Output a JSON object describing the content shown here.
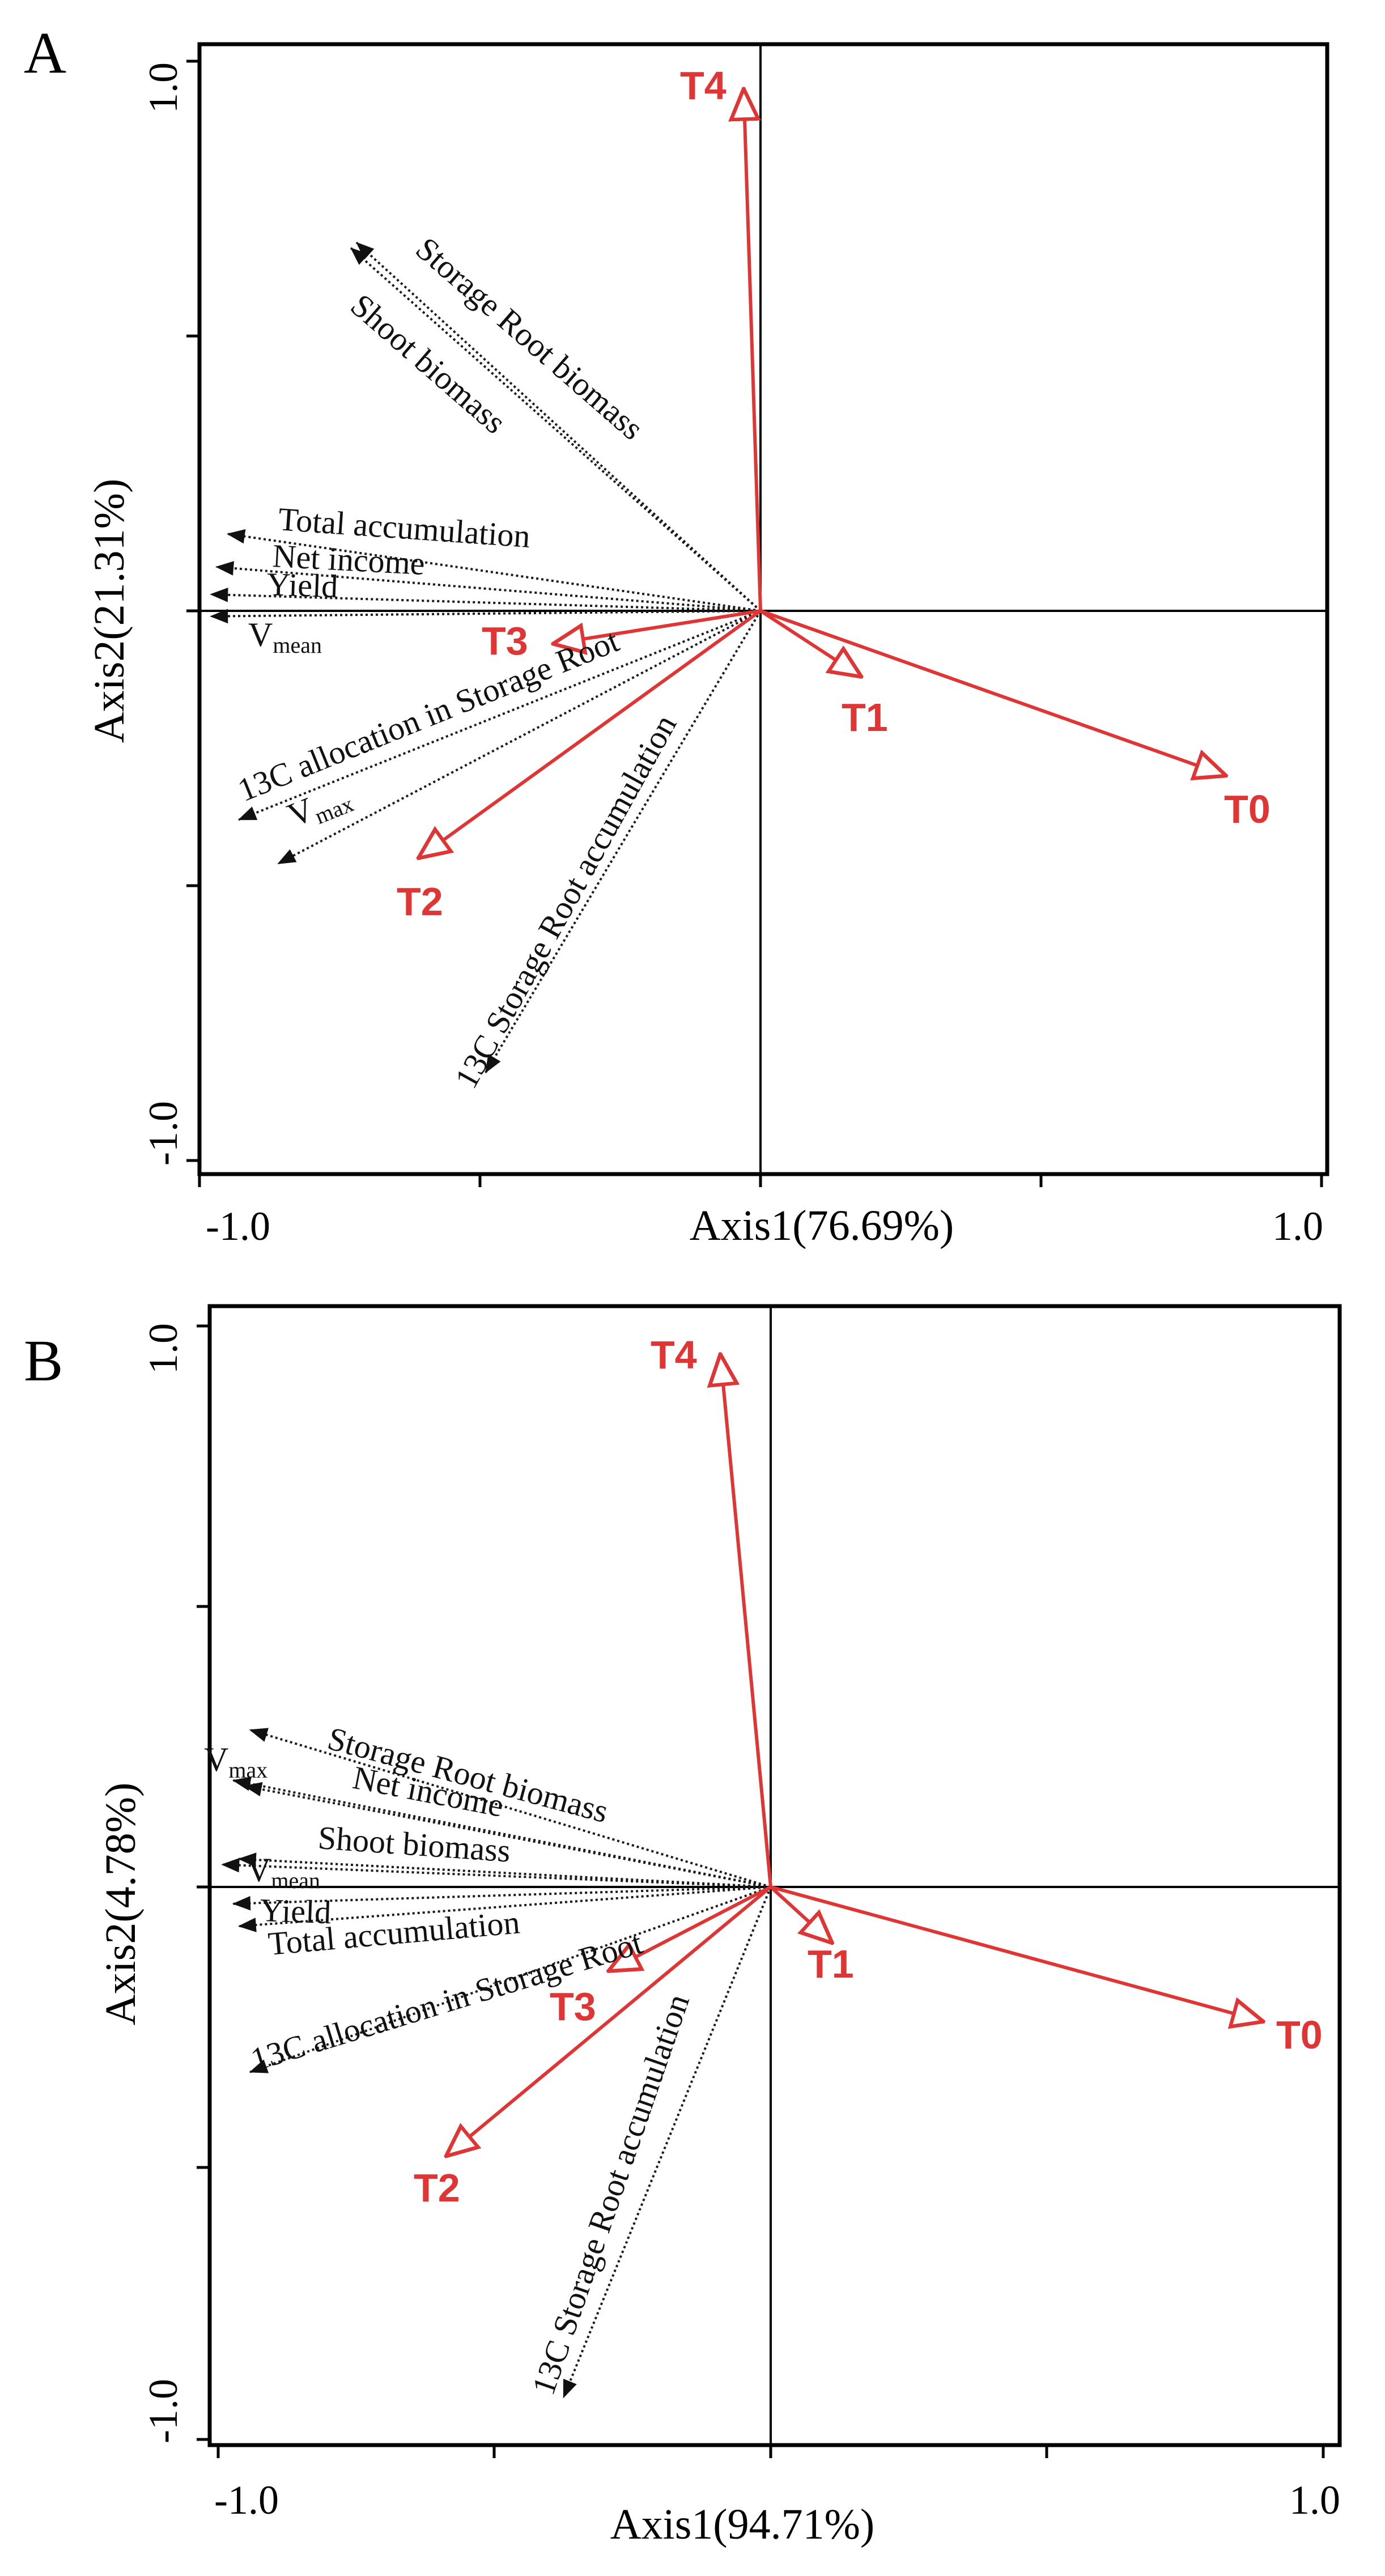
{
  "chart_data": [
    {
      "type": "biplot",
      "panel": "A",
      "xlabel": "Axis1(76.69%)",
      "ylabel": "Axis2(21.31%)",
      "xlim": [
        -1.0,
        1.0
      ],
      "ylim": [
        -1.0,
        1.0
      ],
      "x_ticks": [
        "-1.0",
        "1.0"
      ],
      "y_ticks": [
        "1.0",
        "-1.0"
      ],
      "treatments": [
        {
          "name": "T4",
          "x": -0.03,
          "y": 0.95
        },
        {
          "name": "T3",
          "x": -0.37,
          "y": -0.06
        },
        {
          "name": "T1",
          "x": 0.18,
          "y": -0.12
        },
        {
          "name": "T0",
          "x": 0.83,
          "y": -0.3
        },
        {
          "name": "T2",
          "x": -0.61,
          "y": -0.45
        }
      ],
      "variables": [
        {
          "name": "Storage Root biomass",
          "x": -0.72,
          "y": 0.67
        },
        {
          "name": "Shoot biomass",
          "x": -0.73,
          "y": 0.66
        },
        {
          "name": "Total accumulation",
          "x": -0.95,
          "y": 0.14
        },
        {
          "name": "Net income",
          "x": -0.97,
          "y": 0.08
        },
        {
          "name": "Yield",
          "x": -0.98,
          "y": 0.03
        },
        {
          "name": "V_mean",
          "x": -0.98,
          "y": -0.01
        },
        {
          "name": "13C allocation in Storage Root",
          "x": -0.93,
          "y": -0.38
        },
        {
          "name": "V_max",
          "x": -0.86,
          "y": -0.46
        },
        {
          "name": "13C Storage Root accumulation",
          "x": -0.49,
          "y": -0.84
        }
      ]
    },
    {
      "type": "biplot",
      "panel": "B",
      "xlabel": "Axis1(94.71%)",
      "ylabel": "Axis2(4.78%)",
      "xlim": [
        -1.0,
        1.0
      ],
      "ylim": [
        -1.0,
        1.0
      ],
      "x_ticks": [
        "-1.0",
        "1.0"
      ],
      "y_ticks": [
        "1.0",
        "-1.0"
      ],
      "treatments": [
        {
          "name": "T4",
          "x": -0.09,
          "y": 0.95
        },
        {
          "name": "T1",
          "x": 0.11,
          "y": -0.1
        },
        {
          "name": "T3",
          "x": -0.29,
          "y": -0.15
        },
        {
          "name": "T0",
          "x": 0.88,
          "y": -0.24
        },
        {
          "name": "T2",
          "x": -0.58,
          "y": -0.48
        }
      ],
      "variables": [
        {
          "name": "Storage Root biomass",
          "x": -0.93,
          "y": 0.28
        },
        {
          "name": "V_max",
          "x": -0.96,
          "y": 0.19
        },
        {
          "name": "Net income",
          "x": -0.94,
          "y": 0.18
        },
        {
          "name": "Shoot biomass",
          "x": -0.95,
          "y": 0.05
        },
        {
          "name": "V_mean",
          "x": -0.98,
          "y": 0.04
        },
        {
          "name": "Yield",
          "x": -0.96,
          "y": -0.03
        },
        {
          "name": "Total accumulation",
          "x": -0.95,
          "y": -0.07
        },
        {
          "name": "13C allocation in Storage Root",
          "x": -0.93,
          "y": -0.33
        },
        {
          "name": "13C Storage Root accumulation",
          "x": -0.37,
          "y": -0.91
        }
      ]
    }
  ],
  "panels": {
    "a": {
      "letter": "A",
      "xlabel": "Axis1(76.69%)",
      "ylabel": "Axis2(21.31%)",
      "xtick_left": "-1.0",
      "xtick_right": "1.0",
      "ytick_top": "1.0",
      "ytick_bottom": "-1.0"
    },
    "b": {
      "letter": "B",
      "xlabel": "Axis1(94.71%)",
      "ylabel": "Axis2(4.78%)",
      "xtick_left": "-1.0",
      "xtick_right": "1.0",
      "ytick_top": "1.0",
      "ytick_bottom": "-1.0"
    }
  },
  "labels": {
    "a": {
      "srb": "Storage Root biomass",
      "shoot": "Shoot biomass",
      "total": "Total accumulation",
      "net": "Net income",
      "yield": "Yield",
      "vmean_v": "V",
      "vmean_sub": "mean",
      "alloc": "13C allocation in Storage Root",
      "vmax_v": "V",
      "vmax_sub": "max",
      "accum": "13C Storage Root accumulation",
      "t4": "T4",
      "t3": "T3",
      "t1": "T1",
      "t0": "T0",
      "t2": "T2"
    },
    "b": {
      "srb": "Storage Root biomass",
      "vmax_v": "V",
      "vmax_sub": "max",
      "net": "Net income",
      "shoot": "Shoot biomass",
      "vmean_v": "V",
      "vmean_sub": "mean",
      "yield": "Yield",
      "total": "Total accumulation",
      "alloc": "13C allocation in Storage Root",
      "accum": "13C Storage Root accumulation",
      "t4": "T4",
      "t1": "T1",
      "t3": "T3",
      "t0": "T0",
      "t2": "T2"
    }
  },
  "colors": {
    "treatment": "#e03535",
    "variable": "#1a1a1a",
    "axis": "#000000"
  }
}
